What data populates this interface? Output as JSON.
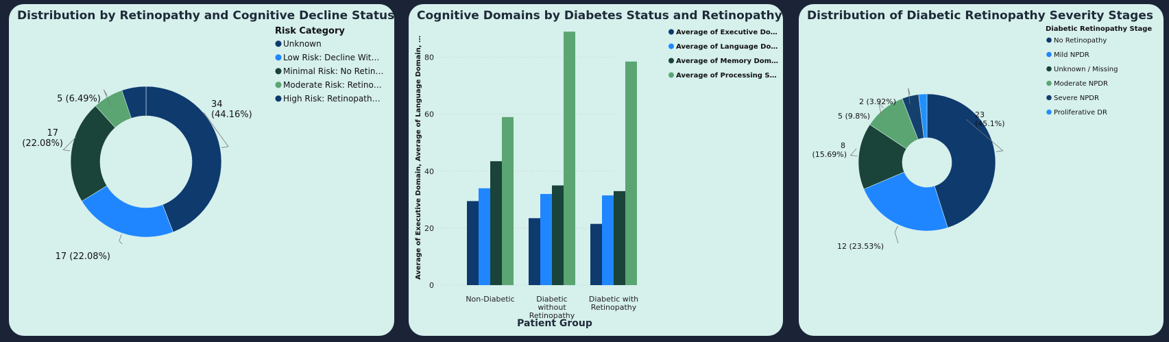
{
  "colors": {
    "navy": "#0e3a6e",
    "blue": "#1f86ff",
    "dark_green": "#1a4339",
    "green": "#5aa572",
    "card_bg": "#d6f0ec",
    "page_bg": "#1b2436"
  },
  "chart_data": [
    {
      "type": "pie",
      "donut": true,
      "title": "Distribution by Retinopathy and Cognitive Decline Status",
      "legend_title": "Risk Category",
      "legend_position": "top-right",
      "slices": [
        {
          "label": "High Risk: Retinopath…",
          "value": 34,
          "data_label": "34 (44.16%)",
          "color": "#0e3a6e"
        },
        {
          "label": "Low Risk: Decline Wit…",
          "value": 17,
          "data_label": "17 (22.08%)",
          "color": "#1f86ff"
        },
        {
          "label": "Minimal Risk: No Retin…",
          "value": 17,
          "data_label": "17 (22.08%)",
          "color": "#1a4339"
        },
        {
          "label": "Moderate Risk: Retino…",
          "value": 5,
          "data_label": "5 (6.49%)",
          "color": "#5aa572"
        },
        {
          "label": "Unknown",
          "value": 4,
          "data_label": "",
          "color": "#0e3a6e"
        }
      ],
      "legend_order": [
        "Unknown",
        "Low Risk: Decline Wit…",
        "Minimal Risk: No Retin…",
        "Moderate Risk: Retino…",
        "High Risk: Retinopath…"
      ],
      "legend_colors": [
        "#0e3a6e",
        "#1f86ff",
        "#1a4339",
        "#5aa572",
        "#0e3a6e"
      ]
    },
    {
      "type": "bar",
      "title": "Cognitive Domains by Diabetes Status and Retinopathy",
      "xlabel": "Patient Group",
      "ylabel": "Average of Executive Domain, Average of Language Domain, …",
      "categories": [
        "Non-Diabetic",
        "Diabetic without Retinopathy",
        "Diabetic with Retinopathy"
      ],
      "ylim": [
        0,
        90
      ],
      "yticks": [
        0,
        20,
        40,
        60,
        80
      ],
      "grid": true,
      "legend_position": "top-right",
      "series": [
        {
          "name": "Average of Executive Do…",
          "values": [
            29.5,
            23.5,
            21.5
          ],
          "color": "#0e3a6e"
        },
        {
          "name": "Average of Language Do…",
          "values": [
            34,
            32,
            31.5
          ],
          "color": "#1f86ff"
        },
        {
          "name": "Average of Memory Dom…",
          "values": [
            43.5,
            35,
            33
          ],
          "color": "#1a4339"
        },
        {
          "name": "Average of Processing S…",
          "values": [
            59,
            89,
            78.5
          ],
          "color": "#5aa572"
        }
      ]
    },
    {
      "type": "pie",
      "donut": true,
      "title": "Distribution of Diabetic Retinopathy Severity Stages",
      "legend_title": "Diabetic Retinopathy Stage",
      "legend_position": "top-right",
      "slices": [
        {
          "label": "No Retinopathy",
          "value": 23,
          "data_label": "23 (45.1%)",
          "color": "#0e3a6e"
        },
        {
          "label": "Mild NPDR",
          "value": 12,
          "data_label": "12 (23.53%)",
          "color": "#1f86ff"
        },
        {
          "label": "Unknown / Missing",
          "value": 8,
          "data_label": "8 (15.69%)",
          "color": "#1a4339"
        },
        {
          "label": "Moderate NPDR",
          "value": 5,
          "data_label": "5 (9.8%)",
          "color": "#5aa572"
        },
        {
          "label": "Severe NPDR",
          "value": 2,
          "data_label": "2 (3.92%)",
          "color": "#15406e"
        },
        {
          "label": "Proliferative DR",
          "value": 1,
          "data_label": "",
          "color": "#2090ff"
        }
      ],
      "legend_order": [
        "No Retinopathy",
        "Mild NPDR",
        "Unknown / Missing",
        "Moderate NPDR",
        "Severe NPDR",
        "Proliferative DR"
      ],
      "legend_colors": [
        "#0e3a6e",
        "#1f86ff",
        "#1a4339",
        "#5aa572",
        "#15406e",
        "#2090ff"
      ]
    }
  ]
}
